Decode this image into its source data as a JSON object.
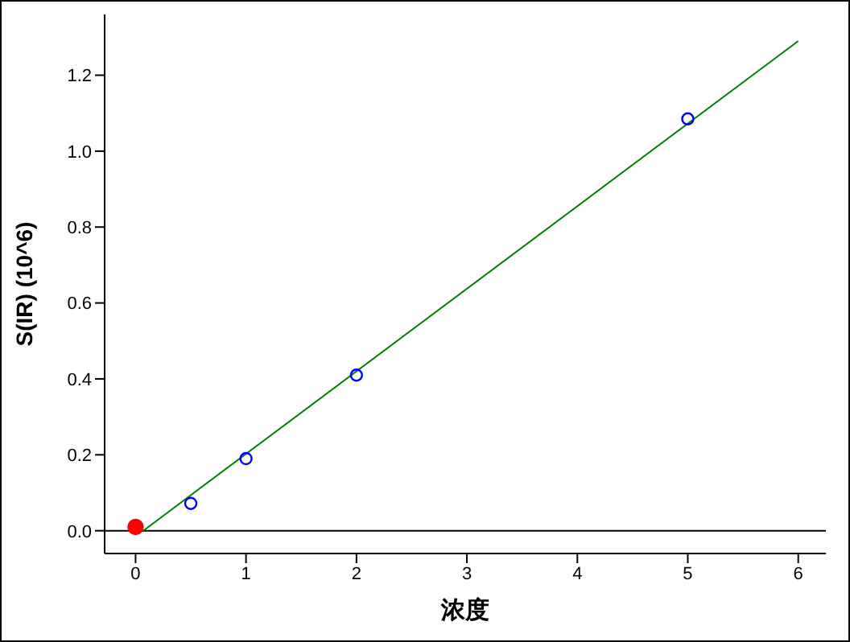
{
  "chart_data": {
    "type": "scatter",
    "xlabel": "浓度",
    "ylabel": "S(IR) (10^6)",
    "xlim": [
      -0.28,
      6.25
    ],
    "xticks": [
      0,
      1,
      2,
      3,
      4,
      5,
      6
    ],
    "ylim": [
      -0.06,
      1.36
    ],
    "yticks": [
      {
        "value": 0,
        "label": "0.0"
      },
      0.2,
      0.4,
      0.6,
      0.8,
      {
        "value": 1,
        "label": "1.0"
      },
      1.2
    ],
    "series": [
      {
        "type": "line",
        "color": "#008000",
        "marker": "none",
        "x": [
          0.07,
          6
        ],
        "values": [
          0,
          1.29
        ]
      },
      {
        "color": "#0000ff",
        "marker": "circle",
        "x": [
          0.5,
          1,
          2,
          5
        ],
        "values": [
          0.072,
          0.19,
          0.41,
          1.085
        ]
      },
      {
        "color": "#ff0000",
        "marker": "circle",
        "x": [
          0
        ],
        "values": [
          0.01
        ]
      }
    ],
    "ref_lines": [
      {
        "axis": "y",
        "value": 0,
        "color": "#000000"
      }
    ],
    "grid": false,
    "legend": false
  }
}
